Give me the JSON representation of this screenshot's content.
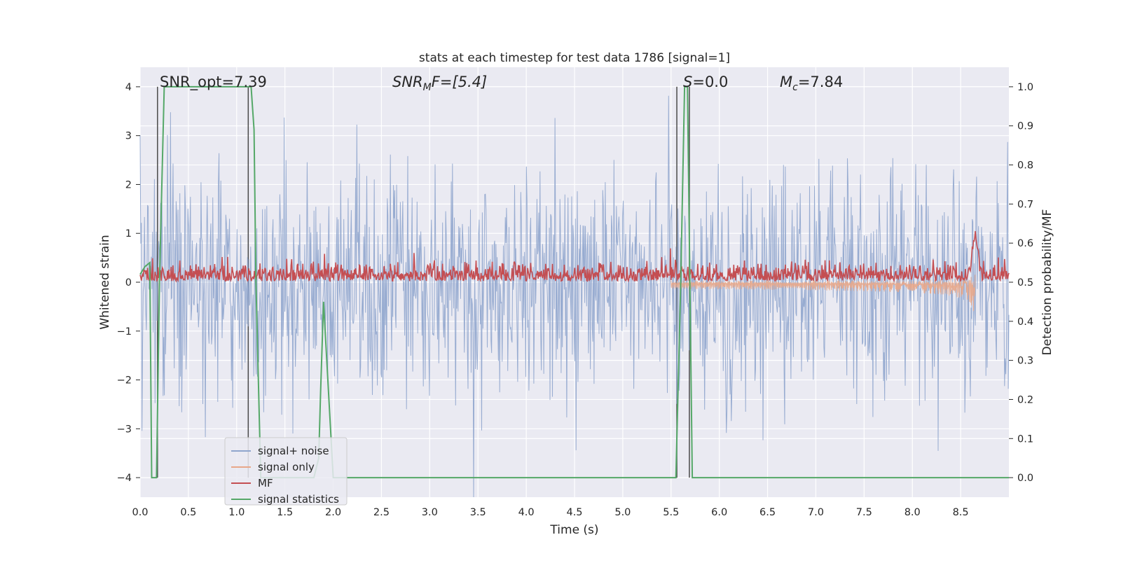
{
  "chart_data": {
    "type": "line",
    "title": "stats at each timestep for test data 1786 [signal=1]",
    "xlabel": "Time (s)",
    "ylabel": "Whitened strain",
    "ylabel_right": "Detection probability/MF",
    "xlim": [
      0.0,
      9.0
    ],
    "ylim": [
      -4.4,
      4.4
    ],
    "ylim_right": [
      -0.05,
      1.05
    ],
    "x_ticks": [
      0.0,
      0.5,
      1.0,
      1.5,
      2.0,
      2.5,
      3.0,
      3.5,
      4.0,
      4.5,
      5.0,
      5.5,
      6.0,
      6.5,
      7.0,
      7.5,
      8.0,
      8.5
    ],
    "x_tick_labels": [
      "0.0",
      "0.5",
      "1.0",
      "1.5",
      "2.0",
      "2.5",
      "3.0",
      "3.5",
      "4.0",
      "4.5",
      "5.0",
      "5.5",
      "6.0",
      "6.5",
      "7.0",
      "7.5",
      "8.0",
      "8.5"
    ],
    "y_ticks": [
      -4,
      -3,
      -2,
      -1,
      0,
      1,
      2,
      3,
      4
    ],
    "y_tick_labels": [
      "−4",
      "−3",
      "−2",
      "−1",
      "0",
      "1",
      "2",
      "3",
      "4"
    ],
    "y_ticks_right": [
      0.0,
      0.1,
      0.2,
      0.3,
      0.4,
      0.5,
      0.6,
      0.7,
      0.8,
      0.9,
      1.0
    ],
    "y_tick_labels_right": [
      "0.0",
      "0.1",
      "0.2",
      "0.3",
      "0.4",
      "0.5",
      "0.6",
      "0.7",
      "0.8",
      "0.9",
      "1.0"
    ],
    "grid": true,
    "legend_placement": "lower-left",
    "annotations": {
      "snr_opt": "SNR_opt=7.39",
      "snr_mf_italic": "SNR",
      "snr_mf_sub": "M",
      "snr_mf_rest": "F=[5.4]",
      "s_italic": "S",
      "s_rest": "=0.0",
      "mc_italic": "M",
      "mc_sub": "c",
      "mc_rest": "=7.84"
    },
    "vertical_lines_x": [
      0.18,
      1.12,
      5.56,
      5.69
    ],
    "series": [
      {
        "name": "signal+ noise",
        "color": "#8fa5cd",
        "axis": "left",
        "noise_sigma": 1.0,
        "sample_count": 1400
      },
      {
        "name": "signal only",
        "color": "#e8a789",
        "axis": "left",
        "chirp_start_s": 5.5,
        "merger_time_s": 8.65,
        "peak_amplitude": 0.9
      },
      {
        "name": "MF",
        "color": "#c44e52",
        "axis": "right",
        "baseline": 0.5,
        "peak_time_s": 8.65,
        "peak_value": 0.63,
        "sample_count": 1400
      },
      {
        "name": "signal statistics",
        "color": "#55a868",
        "axis": "right",
        "x": [
          0.0,
          0.05,
          0.1,
          0.12,
          0.17,
          0.2,
          0.25,
          1.1,
          1.15,
          1.18,
          1.2,
          1.25,
          1.8,
          1.85,
          1.87,
          1.9,
          2.0,
          5.5,
          5.55,
          5.6,
          5.64,
          5.67,
          5.72,
          5.75,
          9.0
        ],
        "values": [
          0.52,
          0.54,
          0.55,
          0.0,
          0.0,
          0.5,
          1.0,
          1.0,
          1.0,
          0.89,
          0.5,
          0.0,
          0.0,
          0.05,
          0.22,
          0.45,
          0.0,
          0.0,
          0.0,
          0.5,
          1.0,
          1.0,
          0.0,
          0.0,
          0.0
        ]
      }
    ]
  }
}
